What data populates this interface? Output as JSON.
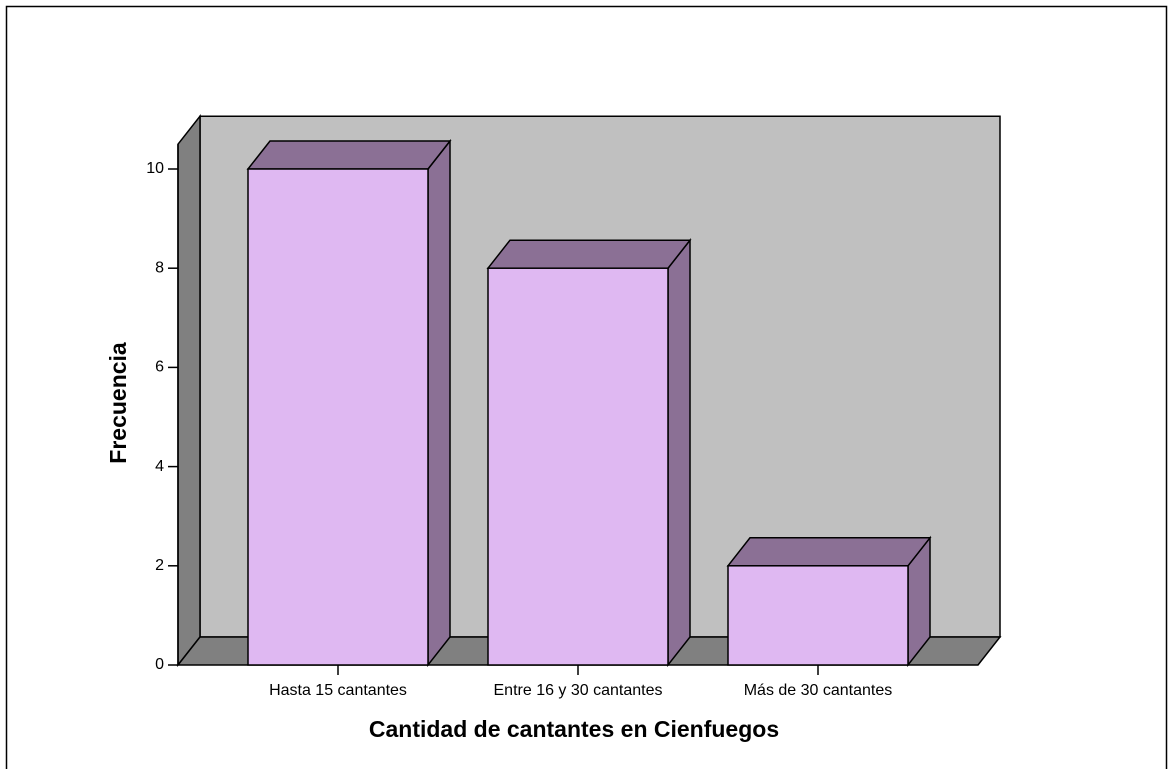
{
  "chart_data": {
    "type": "bar3d",
    "xlabel": "Cantidad de cantantes en Cienfuegos",
    "ylabel": "Frecuencia",
    "categories": [
      "Hasta 15 cantantes",
      "Entre 16 y 30 cantantes",
      "Más de 30 cantantes"
    ],
    "values": [
      10,
      8,
      2
    ],
    "color": "#dfb8f2",
    "ylim": [
      0,
      10.5
    ],
    "yticks": [
      0,
      2,
      4,
      6,
      8,
      10
    ]
  }
}
